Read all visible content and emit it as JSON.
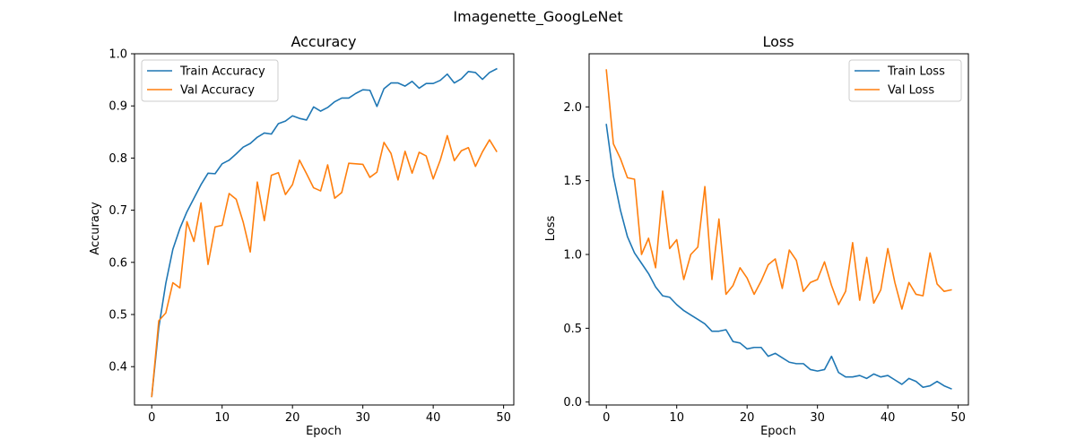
{
  "figure": {
    "suptitle": "Imagenette_GoogLeNet"
  },
  "chart_data": [
    {
      "type": "line",
      "title": "Accuracy",
      "xlabel": "Epoch",
      "ylabel": "Accuracy",
      "xlim": [
        -2.45,
        51.45
      ],
      "ylim": [
        0.3265,
        1.0
      ],
      "xticks": [
        0,
        10,
        20,
        30,
        40,
        50
      ],
      "yticks": [
        0.4,
        0.5,
        0.6,
        0.7,
        0.8,
        0.9,
        1.0
      ],
      "legend": "upper-left",
      "grid": false,
      "series": [
        {
          "name": "Train Accuracy",
          "color": "#1f77b4",
          "values": [
            0.343,
            0.475,
            0.56,
            0.625,
            0.665,
            0.697,
            0.723,
            0.749,
            0.771,
            0.77,
            0.789,
            0.796,
            0.808,
            0.821,
            0.828,
            0.84,
            0.848,
            0.846,
            0.866,
            0.871,
            0.881,
            0.876,
            0.873,
            0.898,
            0.89,
            0.897,
            0.908,
            0.915,
            0.915,
            0.924,
            0.931,
            0.93,
            0.899,
            0.933,
            0.944,
            0.944,
            0.938,
            0.947,
            0.934,
            0.943,
            0.943,
            0.949,
            0.961,
            0.944,
            0.952,
            0.966,
            0.964,
            0.951,
            0.964,
            0.971
          ]
        },
        {
          "name": "Val Accuracy",
          "color": "#ff7f0e",
          "values": [
            0.343,
            0.488,
            0.503,
            0.561,
            0.551,
            0.678,
            0.64,
            0.714,
            0.596,
            0.668,
            0.671,
            0.732,
            0.721,
            0.677,
            0.62,
            0.754,
            0.68,
            0.767,
            0.772,
            0.73,
            0.749,
            0.796,
            0.77,
            0.743,
            0.737,
            0.787,
            0.723,
            0.734,
            0.79,
            0.789,
            0.788,
            0.763,
            0.773,
            0.83,
            0.809,
            0.758,
            0.813,
            0.771,
            0.811,
            0.804,
            0.76,
            0.796,
            0.843,
            0.795,
            0.814,
            0.82,
            0.784,
            0.812,
            0.835,
            0.813
          ]
        }
      ]
    },
    {
      "type": "line",
      "title": "Loss",
      "xlabel": "Epoch",
      "ylabel": "Loss",
      "xlim": [
        -2.45,
        51.45
      ],
      "ylim": [
        -0.02,
        2.36
      ],
      "xticks": [
        0,
        10,
        20,
        30,
        40,
        50
      ],
      "yticks": [
        0.0,
        0.5,
        1.0,
        1.5,
        2.0
      ],
      "legend": "upper-right",
      "grid": false,
      "series": [
        {
          "name": "Train Loss",
          "color": "#1f77b4",
          "values": [
            1.88,
            1.53,
            1.3,
            1.12,
            1.01,
            0.94,
            0.87,
            0.78,
            0.72,
            0.71,
            0.66,
            0.62,
            0.59,
            0.56,
            0.53,
            0.48,
            0.48,
            0.49,
            0.41,
            0.4,
            0.36,
            0.37,
            0.37,
            0.31,
            0.33,
            0.3,
            0.27,
            0.26,
            0.26,
            0.22,
            0.21,
            0.22,
            0.31,
            0.2,
            0.17,
            0.17,
            0.18,
            0.16,
            0.19,
            0.17,
            0.18,
            0.15,
            0.12,
            0.16,
            0.14,
            0.1,
            0.11,
            0.14,
            0.11,
            0.09
          ]
        },
        {
          "name": "Val Loss",
          "color": "#ff7f0e",
          "values": [
            2.25,
            1.75,
            1.65,
            1.52,
            1.51,
            1.0,
            1.11,
            0.91,
            1.43,
            1.04,
            1.1,
            0.83,
            1.0,
            1.05,
            1.46,
            0.83,
            1.24,
            0.73,
            0.79,
            0.91,
            0.84,
            0.73,
            0.82,
            0.93,
            0.97,
            0.77,
            1.03,
            0.96,
            0.75,
            0.81,
            0.83,
            0.95,
            0.79,
            0.66,
            0.75,
            1.08,
            0.69,
            0.98,
            0.67,
            0.76,
            1.04,
            0.81,
            0.63,
            0.81,
            0.73,
            0.72,
            1.01,
            0.8,
            0.75,
            0.76
          ]
        }
      ]
    }
  ]
}
